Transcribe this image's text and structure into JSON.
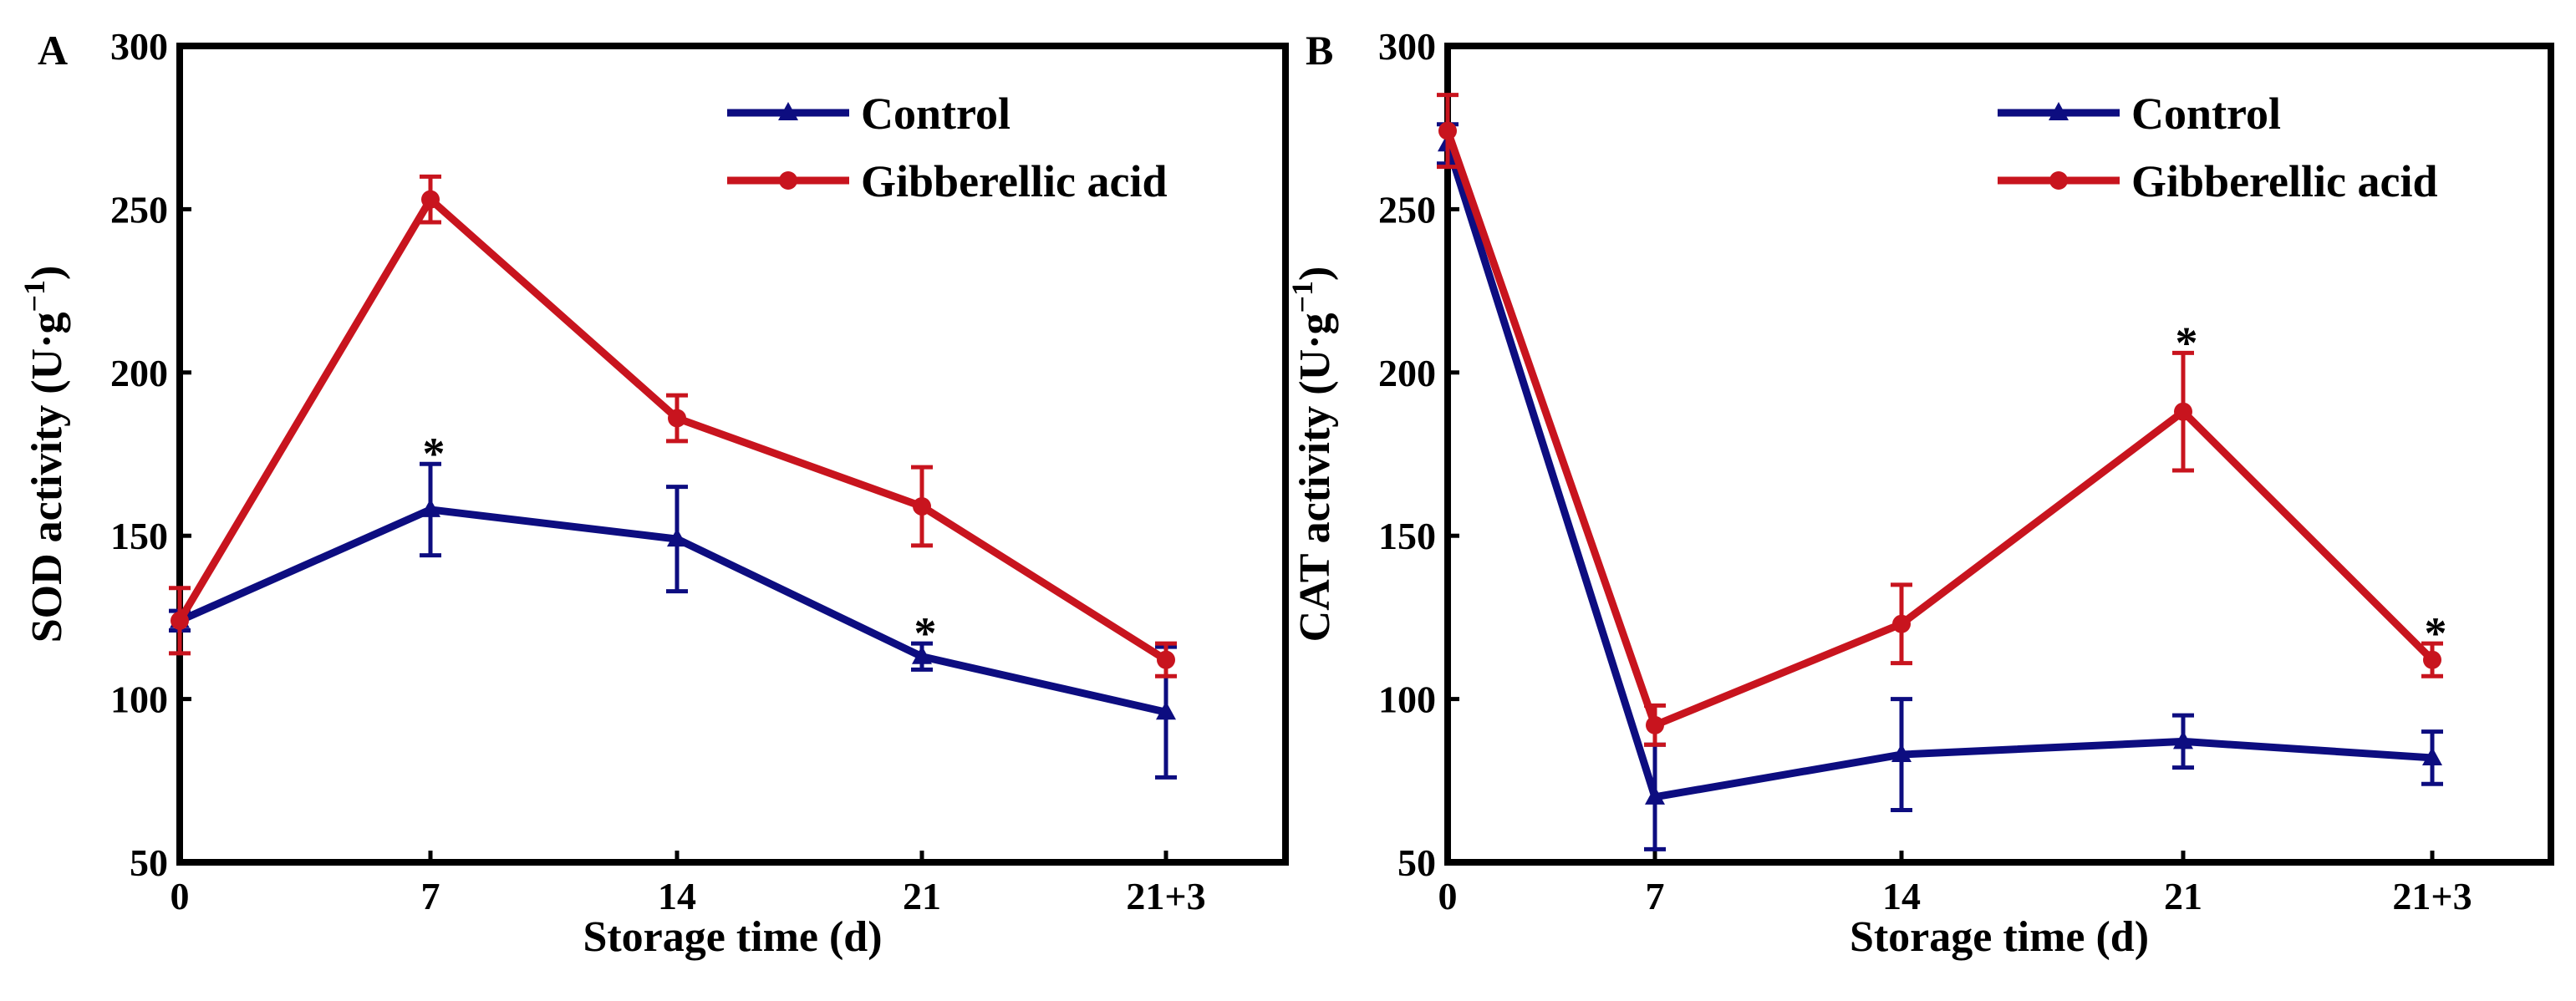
{
  "chart_data": [
    {
      "panel_label": "A",
      "type": "line",
      "categories": [
        "0",
        "7",
        "14",
        "21",
        "21+3"
      ],
      "ylabel": "SOD activity (U·g",
      "ylabel_sup": "−1",
      "ylabel_close": ")",
      "xlabel": "Storage time (d)",
      "ylim": [
        50,
        300
      ],
      "yticks": [
        "50",
        "100",
        "150",
        "200",
        "250",
        "300"
      ],
      "grid": false,
      "legend_position": "top-right",
      "series": [
        {
          "name": "Control",
          "marker": "triangle",
          "color": "#0d0d80",
          "values": [
            124,
            158,
            149,
            113,
            96
          ],
          "errors": [
            3,
            14,
            16,
            4,
            20
          ]
        },
        {
          "name": "Gibberellic acid",
          "marker": "circle",
          "color": "#c8141e",
          "values": [
            124,
            253,
            186,
            159,
            112
          ],
          "errors": [
            10,
            7,
            7,
            12,
            5
          ]
        }
      ],
      "annotations": [
        {
          "text": "*",
          "category": "7",
          "y": 172
        },
        {
          "text": "*",
          "category": "21",
          "y": 117
        }
      ]
    },
    {
      "panel_label": "B",
      "type": "line",
      "categories": [
        "0",
        "7",
        "14",
        "21",
        "21+3"
      ],
      "ylabel": "CAT activity (U·g",
      "ylabel_sup": "−1",
      "ylabel_close": ")",
      "xlabel": "Storage time (d)",
      "ylim": [
        50,
        300
      ],
      "yticks": [
        "50",
        "100",
        "150",
        "200",
        "250",
        "300"
      ],
      "grid": false,
      "legend_position": "top-right",
      "series": [
        {
          "name": "Control",
          "marker": "triangle",
          "color": "#0d0d80",
          "values": [
            270,
            70,
            83,
            87,
            82
          ],
          "errors": [
            6,
            16,
            17,
            8,
            8
          ]
        },
        {
          "name": "Gibberellic acid",
          "marker": "circle",
          "color": "#c8141e",
          "values": [
            274,
            92,
            123,
            188,
            112
          ],
          "errors": [
            11,
            6,
            12,
            18,
            5
          ]
        }
      ],
      "annotations": [
        {
          "text": "*",
          "category": "21",
          "y": 206
        },
        {
          "text": "*",
          "category": "21+3",
          "y": 117
        }
      ]
    }
  ]
}
